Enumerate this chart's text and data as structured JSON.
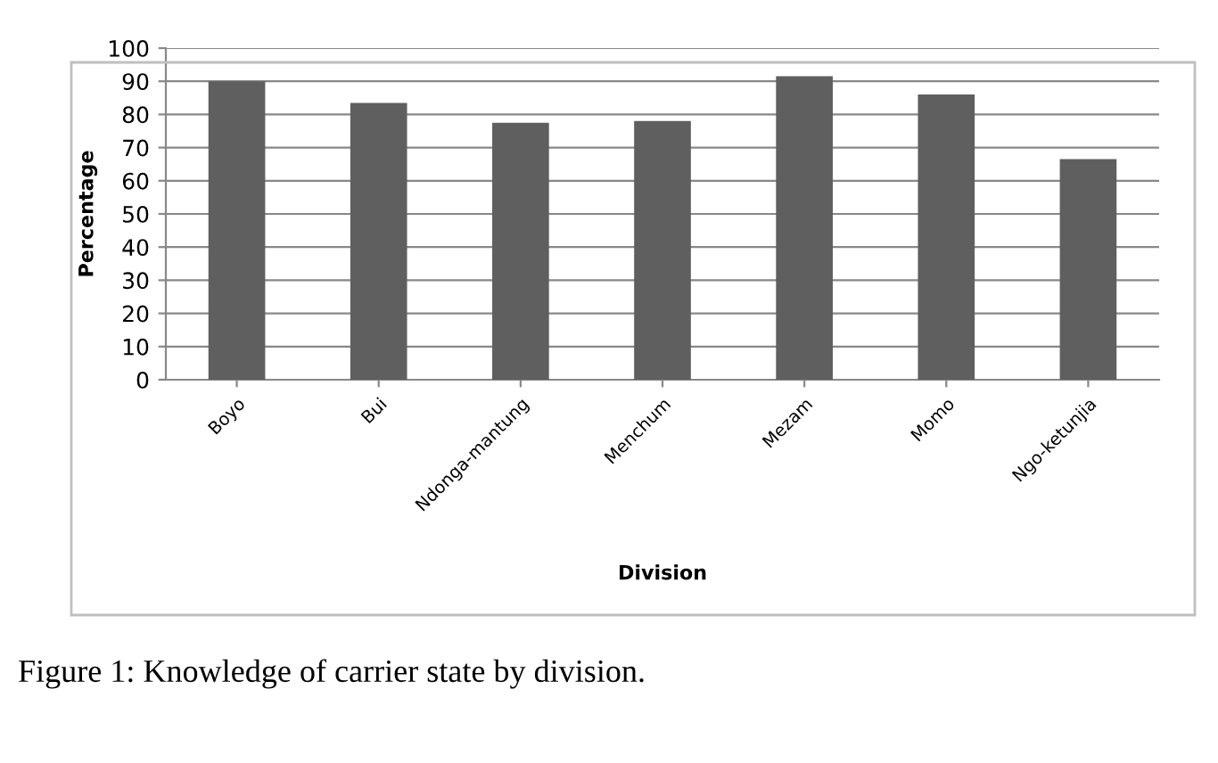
{
  "chart_data": {
    "type": "bar",
    "xlabel": "Division",
    "ylabel": "Percentage",
    "categories": [
      "Boyo",
      "Bui",
      "Ndonga-mantung",
      "Menchum",
      "Mezam",
      "Momo",
      "Ngo-ketunjia"
    ],
    "values": [
      90,
      83.5,
      77.5,
      78,
      91.5,
      86,
      66.5
    ],
    "color": "#5f5f5f",
    "ylim": [
      0,
      100
    ],
    "yticks": [
      0,
      10,
      20,
      30,
      40,
      50,
      60,
      70,
      80,
      90,
      100
    ],
    "grid": "y",
    "annotations": [
      "Figure 1: Knowledge of carrier state by division."
    ]
  }
}
